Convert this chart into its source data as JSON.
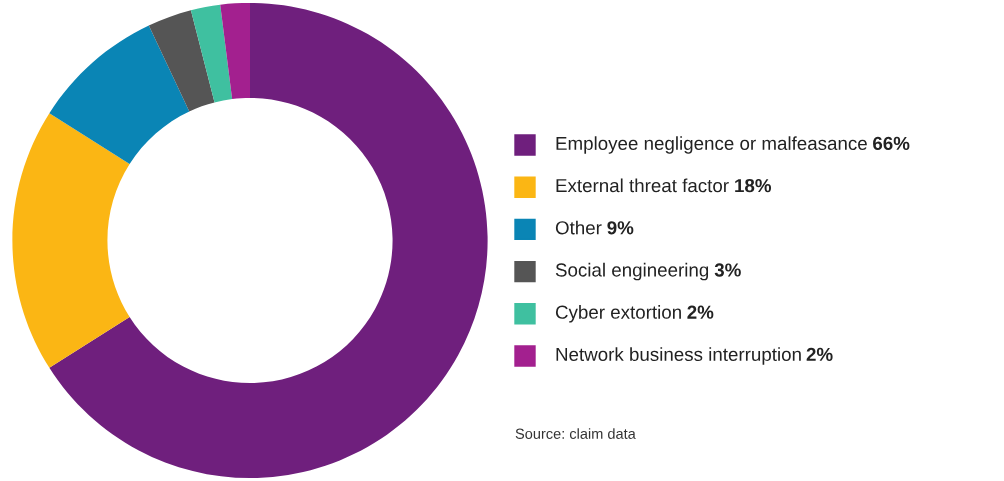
{
  "chart_data": {
    "type": "donut",
    "categories": [
      "Employee negligence or malfeasance",
      "External threat factor",
      "Other",
      "Social engineering",
      "Cyber extortion",
      "Network business interruption"
    ],
    "values": [
      66,
      18,
      9,
      3,
      2,
      2
    ],
    "value_labels": [
      "66%",
      "18%",
      "9%",
      "3%",
      "2%",
      "2%"
    ],
    "colors": [
      "#6f1f7d",
      "#fbb614",
      "#0a85b5",
      "#555555",
      "#3fc0a0",
      "#a3208f"
    ],
    "legend": "right",
    "annotations": [
      "Source: claim data"
    ]
  }
}
